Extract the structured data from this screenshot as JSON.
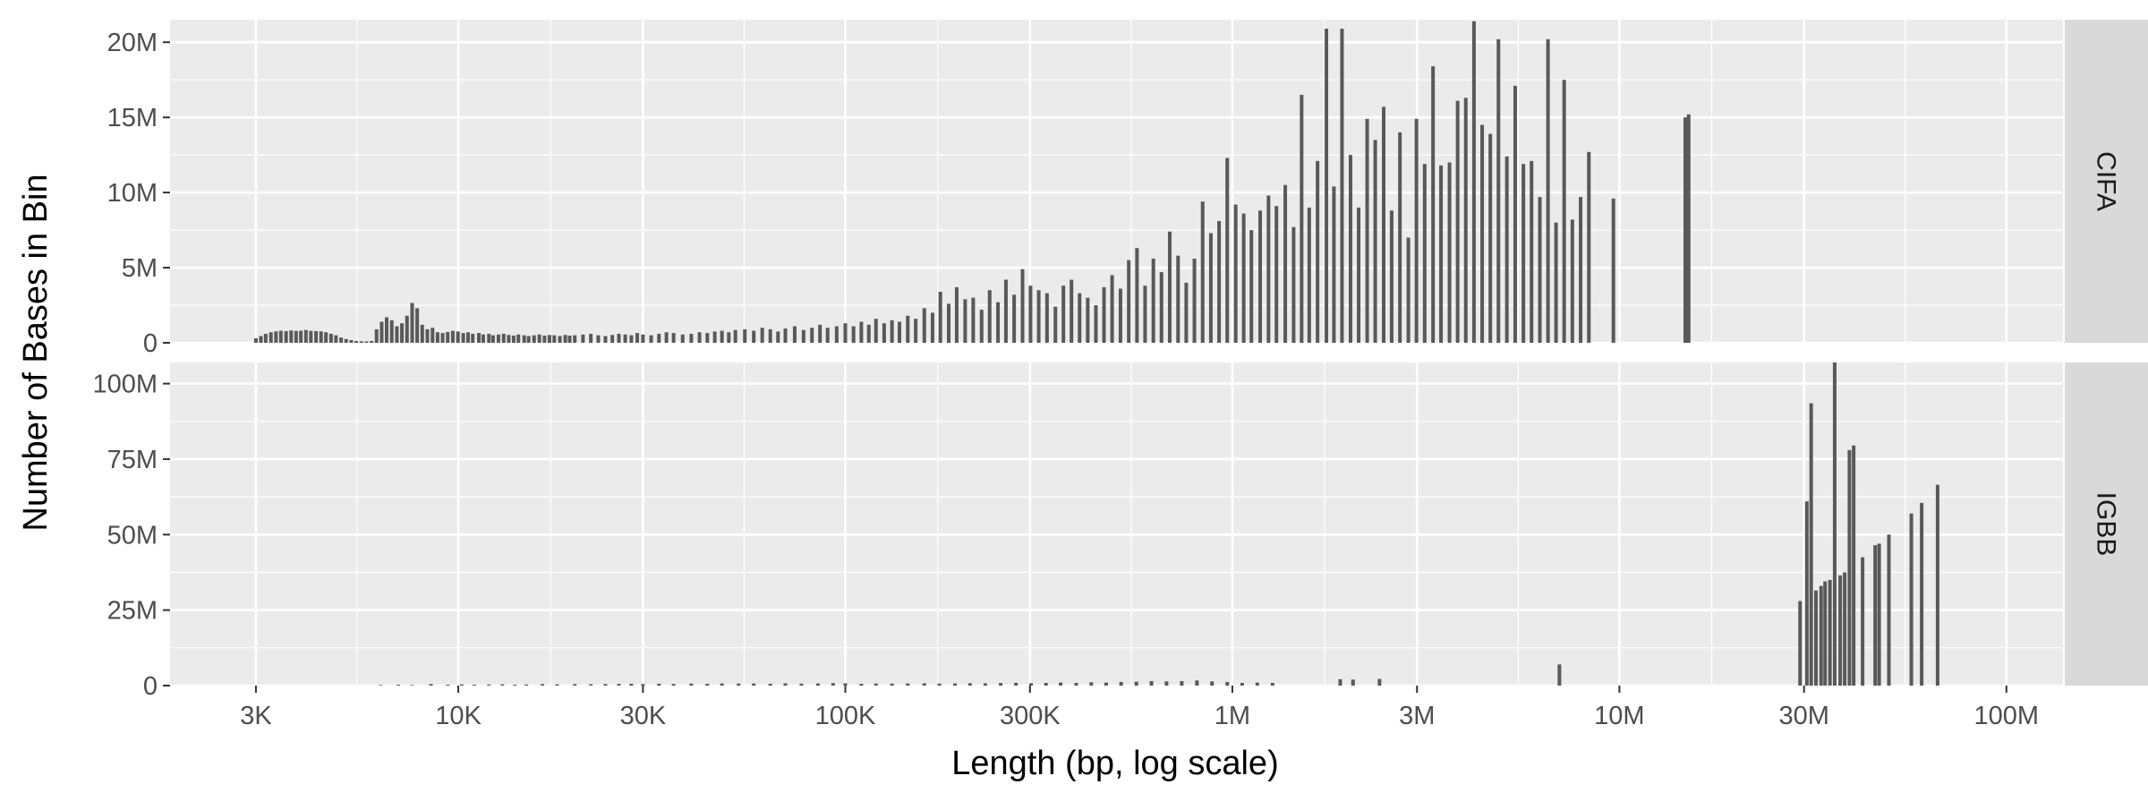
{
  "chart_data": {
    "type": "bar",
    "xlabel": "Length (bp, log scale)",
    "ylabel": "Number of Bases in Bin",
    "x_scale": "log10",
    "xlim": [
      1800,
      140000000
    ],
    "x_ticks": [
      3000,
      10000,
      30000,
      100000,
      300000,
      1000000,
      3000000,
      10000000,
      30000000,
      100000000
    ],
    "x_tick_labels": [
      "3K",
      "10K",
      "30K",
      "100K",
      "300K",
      "1M",
      "3M",
      "10M",
      "30M",
      "100M"
    ],
    "grid": true,
    "legend": "none",
    "colors": {
      "bar": "#595959",
      "panel": "#ebebeb",
      "grid": "#ffffff",
      "strip": "#d9d9d9"
    },
    "panels": [
      {
        "label": "CIFA",
        "ylim": [
          0,
          21500000
        ],
        "y_ticks": [
          0,
          5000000,
          10000000,
          15000000,
          20000000
        ],
        "y_tick_labels": [
          "0",
          "5M",
          "10M",
          "15M",
          "20M"
        ],
        "bars": [
          [
            3000,
            300000
          ],
          [
            3090,
            450000
          ],
          [
            3180,
            600000
          ],
          [
            3280,
            700000
          ],
          [
            3380,
            760000
          ],
          [
            3480,
            800000
          ],
          [
            3590,
            780000
          ],
          [
            3700,
            820000
          ],
          [
            3810,
            790000
          ],
          [
            3920,
            800000
          ],
          [
            4040,
            850000
          ],
          [
            4160,
            800000
          ],
          [
            4290,
            780000
          ],
          [
            4420,
            760000
          ],
          [
            4550,
            700000
          ],
          [
            4690,
            600000
          ],
          [
            4830,
            500000
          ],
          [
            4980,
            350000
          ],
          [
            5130,
            250000
          ],
          [
            5290,
            180000
          ],
          [
            5450,
            120000
          ],
          [
            5620,
            100000
          ],
          [
            5790,
            90000
          ],
          [
            5970,
            120000
          ],
          [
            6150,
            900000
          ],
          [
            6340,
            1400000
          ],
          [
            6530,
            1700000
          ],
          [
            6730,
            1500000
          ],
          [
            6940,
            1100000
          ],
          [
            7150,
            1300000
          ],
          [
            7370,
            1800000
          ],
          [
            7600,
            2650000
          ],
          [
            7830,
            2300000
          ],
          [
            8070,
            1200000
          ],
          [
            8320,
            900000
          ],
          [
            8580,
            1000000
          ],
          [
            8840,
            700000
          ],
          [
            9110,
            650000
          ],
          [
            9390,
            720000
          ],
          [
            9680,
            800000
          ],
          [
            9980,
            750000
          ],
          [
            10300,
            650000
          ],
          [
            10600,
            700000
          ],
          [
            10900,
            600000
          ],
          [
            11300,
            650000
          ],
          [
            11600,
            550000
          ],
          [
            12000,
            600000
          ],
          [
            12300,
            500000
          ],
          [
            12700,
            550000
          ],
          [
            13100,
            600000
          ],
          [
            13500,
            520000
          ],
          [
            13900,
            480000
          ],
          [
            14300,
            550000
          ],
          [
            14800,
            500000
          ],
          [
            15200,
            450000
          ],
          [
            15700,
            500000
          ],
          [
            16200,
            550000
          ],
          [
            16700,
            480000
          ],
          [
            17200,
            520000
          ],
          [
            17700,
            500000
          ],
          [
            18300,
            450000
          ],
          [
            18900,
            520000
          ],
          [
            19400,
            480000
          ],
          [
            20000,
            500000
          ],
          [
            21000,
            550000
          ],
          [
            22000,
            600000
          ],
          [
            23000,
            500000
          ],
          [
            24000,
            450000
          ],
          [
            25000,
            520000
          ],
          [
            26000,
            600000
          ],
          [
            27000,
            550000
          ],
          [
            28000,
            500000
          ],
          [
            29000,
            650000
          ],
          [
            30000,
            550000
          ],
          [
            31500,
            500000
          ],
          [
            33000,
            600000
          ],
          [
            34500,
            700000
          ],
          [
            36000,
            650000
          ],
          [
            38000,
            550000
          ],
          [
            40000,
            600000
          ],
          [
            42000,
            700000
          ],
          [
            44000,
            650000
          ],
          [
            46000,
            750000
          ],
          [
            48000,
            800000
          ],
          [
            50000,
            700000
          ],
          [
            52000,
            850000
          ],
          [
            55000,
            900000
          ],
          [
            58000,
            800000
          ],
          [
            61000,
            1000000
          ],
          [
            64000,
            900000
          ],
          [
            67000,
            750000
          ],
          [
            70000,
            950000
          ],
          [
            74000,
            1100000
          ],
          [
            78000,
            850000
          ],
          [
            82000,
            1000000
          ],
          [
            86000,
            1200000
          ],
          [
            90000,
            1000000
          ],
          [
            95000,
            1100000
          ],
          [
            100000,
            1300000
          ],
          [
            105000,
            1100000
          ],
          [
            110000,
            1400000
          ],
          [
            115000,
            1200000
          ],
          [
            120000,
            1600000
          ],
          [
            126000,
            1300000
          ],
          [
            132000,
            1500000
          ],
          [
            138000,
            1400000
          ],
          [
            145000,
            1800000
          ],
          [
            152000,
            1600000
          ],
          [
            160000,
            2300000
          ],
          [
            168000,
            2000000
          ],
          [
            176000,
            3400000
          ],
          [
            185000,
            2600000
          ],
          [
            194000,
            3700000
          ],
          [
            204000,
            2900000
          ],
          [
            214000,
            3000000
          ],
          [
            225000,
            2200000
          ],
          [
            236000,
            3500000
          ],
          [
            248000,
            2700000
          ],
          [
            260000,
            4200000
          ],
          [
            273000,
            3200000
          ],
          [
            287000,
            4900000
          ],
          [
            301000,
            3800000
          ],
          [
            316000,
            3500000
          ],
          [
            332000,
            3300000
          ],
          [
            349000,
            2400000
          ],
          [
            366000,
            3800000
          ],
          [
            384000,
            4200000
          ],
          [
            403000,
            3300000
          ],
          [
            423000,
            3000000
          ],
          [
            444000,
            2500000
          ],
          [
            466000,
            3700000
          ],
          [
            489000,
            4500000
          ],
          [
            514000,
            3600000
          ],
          [
            540000,
            5500000
          ],
          [
            567000,
            6300000
          ],
          [
            595000,
            3800000
          ],
          [
            625000,
            5600000
          ],
          [
            656000,
            4700000
          ],
          [
            689000,
            7400000
          ],
          [
            724000,
            5800000
          ],
          [
            760000,
            4000000
          ],
          [
            798000,
            5600000
          ],
          [
            838000,
            9400000
          ],
          [
            880000,
            7300000
          ],
          [
            924000,
            8100000
          ],
          [
            970000,
            12300000
          ],
          [
            1020000,
            9200000
          ],
          [
            1070000,
            8600000
          ],
          [
            1120000,
            7500000
          ],
          [
            1180000,
            8800000
          ],
          [
            1240000,
            9800000
          ],
          [
            1300000,
            9100000
          ],
          [
            1370000,
            10500000
          ],
          [
            1440000,
            7700000
          ],
          [
            1510000,
            16500000
          ],
          [
            1580000,
            9000000
          ],
          [
            1660000,
            12100000
          ],
          [
            1750000,
            20900000
          ],
          [
            1830000,
            10400000
          ],
          [
            1920000,
            20900000
          ],
          [
            2020000,
            12500000
          ],
          [
            2120000,
            9000000
          ],
          [
            2230000,
            14900000
          ],
          [
            2340000,
            13500000
          ],
          [
            2460000,
            15700000
          ],
          [
            2580000,
            8800000
          ],
          [
            2710000,
            14000000
          ],
          [
            2850000,
            7000000
          ],
          [
            2990000,
            14900000
          ],
          [
            3140000,
            11900000
          ],
          [
            3300000,
            18400000
          ],
          [
            3460000,
            11800000
          ],
          [
            3640000,
            12000000
          ],
          [
            3820000,
            16100000
          ],
          [
            4010000,
            16300000
          ],
          [
            4210000,
            21400000
          ],
          [
            4420000,
            14500000
          ],
          [
            4640000,
            13900000
          ],
          [
            4870000,
            20200000
          ],
          [
            5120000,
            12400000
          ],
          [
            5380000,
            17100000
          ],
          [
            5650000,
            11900000
          ],
          [
            5930000,
            12100000
          ],
          [
            6230000,
            9700000
          ],
          [
            6540000,
            20200000
          ],
          [
            6860000,
            8000000
          ],
          [
            7200000,
            17500000
          ],
          [
            7560000,
            8200000
          ],
          [
            7940000,
            9700000
          ],
          [
            8340000,
            12700000
          ],
          [
            9650000,
            9600000
          ],
          [
            14800000,
            15000000
          ],
          [
            15100000,
            15200000
          ]
        ]
      },
      {
        "label": "IGBB",
        "ylim": [
          0,
          107000000
        ],
        "y_ticks": [
          0,
          25000000,
          50000000,
          75000000,
          100000000
        ],
        "y_tick_labels": [
          "0",
          "25M",
          "50M",
          "75M",
          "100M"
        ],
        "bars": [
          [
            6300,
            200000
          ],
          [
            7000,
            300000
          ],
          [
            7600,
            200000
          ],
          [
            8500,
            500000
          ],
          [
            9400,
            300000
          ],
          [
            10200,
            400000
          ],
          [
            11000,
            300000
          ],
          [
            12000,
            350000
          ],
          [
            13000,
            400000
          ],
          [
            14000,
            300000
          ],
          [
            15000,
            350000
          ],
          [
            16500,
            500000
          ],
          [
            18000,
            400000
          ],
          [
            20000,
            500000
          ],
          [
            22000,
            450000
          ],
          [
            24000,
            500000
          ],
          [
            26000,
            550000
          ],
          [
            28000,
            600000
          ],
          [
            30000,
            500000
          ],
          [
            33000,
            600000
          ],
          [
            36000,
            550000
          ],
          [
            40000,
            650000
          ],
          [
            44000,
            600000
          ],
          [
            48000,
            700000
          ],
          [
            53000,
            650000
          ],
          [
            58000,
            700000
          ],
          [
            64000,
            600000
          ],
          [
            70000,
            750000
          ],
          [
            77000,
            650000
          ],
          [
            85000,
            700000
          ],
          [
            93000,
            800000
          ],
          [
            100000,
            750000
          ],
          [
            110000,
            600000
          ],
          [
            120000,
            700000
          ],
          [
            132000,
            650000
          ],
          [
            145000,
            700000
          ],
          [
            160000,
            750000
          ],
          [
            175000,
            650000
          ],
          [
            192000,
            700000
          ],
          [
            210000,
            800000
          ],
          [
            230000,
            750000
          ],
          [
            252000,
            850000
          ],
          [
            276000,
            900000
          ],
          [
            302000,
            800000
          ],
          [
            330000,
            900000
          ],
          [
            360000,
            1000000
          ],
          [
            395000,
            900000
          ],
          [
            432000,
            1100000
          ],
          [
            472000,
            1000000
          ],
          [
            516000,
            1200000
          ],
          [
            565000,
            1300000
          ],
          [
            618000,
            1500000
          ],
          [
            676000,
            1400000
          ],
          [
            740000,
            1500000
          ],
          [
            810000,
            1700000
          ],
          [
            886000,
            1400000
          ],
          [
            970000,
            1200000
          ],
          [
            1060000,
            900000
          ],
          [
            1160000,
            1000000
          ],
          [
            1270000,
            900000
          ],
          [
            1900000,
            2100000
          ],
          [
            2050000,
            2000000
          ],
          [
            2400000,
            2200000
          ],
          [
            7000000,
            7000000
          ],
          [
            29300000,
            28000000
          ],
          [
            30500000,
            61000000
          ],
          [
            31300000,
            93500000
          ],
          [
            32200000,
            31500000
          ],
          [
            33200000,
            33000000
          ],
          [
            34000000,
            34500000
          ],
          [
            35000000,
            35000000
          ],
          [
            36000000,
            107000000
          ],
          [
            37200000,
            36500000
          ],
          [
            38200000,
            37500000
          ],
          [
            39300000,
            78000000
          ],
          [
            40300000,
            79500000
          ],
          [
            42500000,
            42500000
          ],
          [
            45800000,
            46500000
          ],
          [
            46900000,
            47000000
          ],
          [
            49700000,
            50000000
          ],
          [
            56800000,
            57000000
          ],
          [
            60400000,
            60500000
          ],
          [
            66400000,
            66500000
          ]
        ]
      }
    ]
  }
}
